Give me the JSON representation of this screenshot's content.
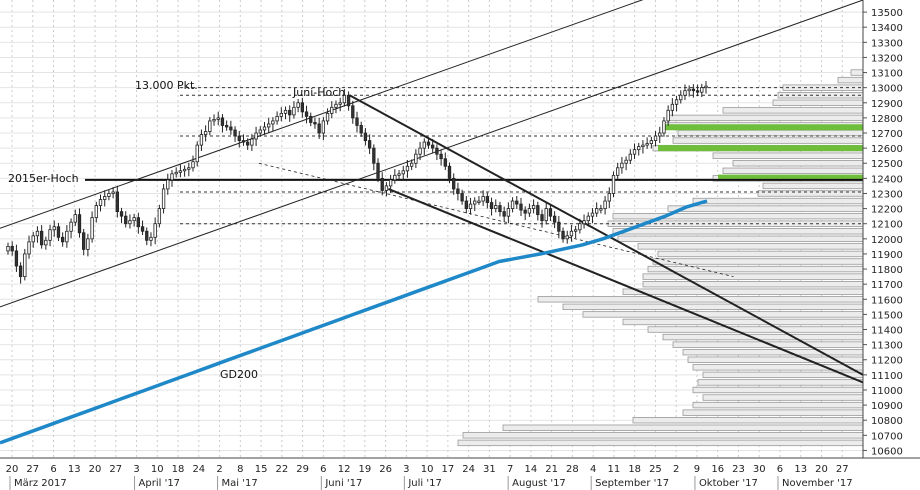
{
  "chart_data": {
    "type": "candlestick",
    "ylim": [
      10550,
      13580
    ],
    "y_ticks": [
      10600,
      10700,
      10800,
      10900,
      11000,
      11100,
      11200,
      11300,
      11400,
      11500,
      11600,
      11700,
      11800,
      11900,
      12000,
      12100,
      12200,
      12300,
      12400,
      12500,
      12600,
      12700,
      12800,
      12900,
      13000,
      13100,
      13200,
      13300,
      13400,
      13500
    ],
    "day_labels": [
      "20",
      "27",
      "6",
      "13",
      "20",
      "27",
      "3",
      "10",
      "18",
      "24",
      "2",
      "8",
      "15",
      "22",
      "29",
      "6",
      "12",
      "19",
      "26",
      "3",
      "10",
      "17",
      "24",
      "31",
      "7",
      "14",
      "21",
      "28",
      "4",
      "11",
      "18",
      "25",
      "2",
      "9",
      "16",
      "23",
      "30",
      "6",
      "13",
      "20",
      "27"
    ],
    "month_labels": [
      "März 2017",
      "April '17",
      "Mai '17",
      "Juni '17",
      "Juli '17",
      "August '17",
      "September '17",
      "Oktober '17",
      "November '17"
    ],
    "annotations": {
      "target": "13.000 Pkt.",
      "june_high": "Juni-Hoch",
      "high_2015": "2015er-Hoch",
      "ma": "GD200"
    },
    "levels": [
      {
        "price": 12390,
        "label": "2015er-Hoch",
        "style": "solid"
      },
      {
        "price": 13000,
        "label": "13.000 Pkt.",
        "style": "dashed"
      },
      {
        "price": 12950,
        "style": "dashed"
      },
      {
        "price": 12680,
        "style": "dashed"
      },
      {
        "price": 12310,
        "style": "dashed"
      },
      {
        "price": 12100,
        "style": "dashed"
      }
    ],
    "closes": [
      11950,
      11920,
      11820,
      11750,
      11900,
      11980,
      12020,
      12050,
      11960,
      11990,
      12060,
      12080,
      12010,
      11980,
      12050,
      12110,
      12160,
      12040,
      11930,
      12000,
      12140,
      12220,
      12260,
      12280,
      12300,
      12310,
      12180,
      12150,
      12100,
      12120,
      12140,
      12080,
      12050,
      11990,
      12010,
      12100,
      12200,
      12330,
      12390,
      12430,
      12440,
      12450,
      12460,
      12470,
      12510,
      12620,
      12690,
      12710,
      12780,
      12790,
      12800,
      12750,
      12740,
      12720,
      12680,
      12650,
      12640,
      12620,
      12660,
      12700,
      12720,
      12740,
      12760,
      12780,
      12810,
      12830,
      12850,
      12820,
      12870,
      12900,
      12840,
      12810,
      12770,
      12760,
      12700,
      12780,
      12830,
      12870,
      12890,
      12900,
      12950,
      12880,
      12800,
      12750,
      12700,
      12650,
      12600,
      12500,
      12400,
      12320,
      12350,
      12390,
      12420,
      12430,
      12450,
      12480,
      12500,
      12560,
      12600,
      12640,
      12620,
      12600,
      12560,
      12530,
      12480,
      12400,
      12330,
      12300,
      12250,
      12200,
      12230,
      12250,
      12250,
      12280,
      12240,
      12200,
      12220,
      12180,
      12150,
      12200,
      12250,
      12230,
      12190,
      12170,
      12200,
      12220,
      12160,
      12120,
      12200,
      12150,
      12110,
      12050,
      12000,
      12020,
      12050,
      12060,
      12100,
      12120,
      12150,
      12170,
      12200,
      12200,
      12250,
      12300,
      12420,
      12470,
      12500,
      12520,
      12560,
      12590,
      12610,
      12620,
      12630,
      12650,
      12680,
      12700,
      12780,
      12850,
      12890,
      12920,
      12950,
      12980,
      12990,
      12980,
      12970,
      13000,
      13010
    ],
    "gd200": [
      10650,
      10700,
      10750,
      10800,
      10850,
      10900,
      10950,
      11000,
      11050,
      11100,
      11150,
      11200,
      11250,
      11300,
      11350,
      11400,
      11450,
      11500,
      11550,
      11600,
      11650,
      11700,
      11750,
      11800,
      11850,
      11875,
      11900,
      11930,
      11960,
      12000,
      12050,
      12100,
      12150,
      12210,
      12250
    ],
    "volume_profile_max": 420,
    "volume_profile": [
      {
        "p": 10650,
        "v": 405
      },
      {
        "p": 10700,
        "v": 400
      },
      {
        "p": 10750,
        "v": 360
      },
      {
        "p": 10800,
        "v": 230
      },
      {
        "p": 10850,
        "v": 180
      },
      {
        "p": 10900,
        "v": 170
      },
      {
        "p": 10950,
        "v": 160
      },
      {
        "p": 11000,
        "v": 170
      },
      {
        "p": 11050,
        "v": 165
      },
      {
        "p": 11100,
        "v": 160
      },
      {
        "p": 11150,
        "v": 170
      },
      {
        "p": 11200,
        "v": 175
      },
      {
        "p": 11250,
        "v": 180
      },
      {
        "p": 11300,
        "v": 190
      },
      {
        "p": 11350,
        "v": 200
      },
      {
        "p": 11400,
        "v": 215
      },
      {
        "p": 11450,
        "v": 240
      },
      {
        "p": 11500,
        "v": 280
      },
      {
        "p": 11550,
        "v": 300
      },
      {
        "p": 11600,
        "v": 325
      },
      {
        "p": 11650,
        "v": 240
      },
      {
        "p": 11700,
        "v": 220
      },
      {
        "p": 11750,
        "v": 220
      },
      {
        "p": 11800,
        "v": 215
      },
      {
        "p": 11850,
        "v": 210
      },
      {
        "p": 11900,
        "v": 205
      },
      {
        "p": 11950,
        "v": 225
      },
      {
        "p": 12000,
        "v": 245
      },
      {
        "p": 12050,
        "v": 250
      },
      {
        "p": 12100,
        "v": 255
      },
      {
        "p": 12150,
        "v": 250
      },
      {
        "p": 12200,
        "v": 195
      },
      {
        "p": 12250,
        "v": 170
      },
      {
        "p": 12300,
        "v": 105
      },
      {
        "p": 12350,
        "v": 100
      },
      {
        "p": 12400,
        "v": 150
      },
      {
        "p": 12450,
        "v": 140
      },
      {
        "p": 12500,
        "v": 130
      },
      {
        "p": 12550,
        "v": 150
      },
      {
        "p": 12600,
        "v": 210
      },
      {
        "p": 12650,
        "v": 190
      },
      {
        "p": 12700,
        "v": 185
      },
      {
        "p": 12750,
        "v": 200
      },
      {
        "p": 12800,
        "v": 195
      },
      {
        "p": 12850,
        "v": 140
      },
      {
        "p": 12900,
        "v": 90
      },
      {
        "p": 12950,
        "v": 85
      },
      {
        "p": 13000,
        "v": 80
      },
      {
        "p": 13050,
        "v": 25
      },
      {
        "p": 13100,
        "v": 12
      }
    ],
    "green_zones": [
      {
        "p": 12405,
        "v": 145
      },
      {
        "p": 12600,
        "v": 205
      },
      {
        "p": 12738,
        "v": 200
      }
    ],
    "trend_lines": [
      {
        "x1": 0,
        "p1": 12070,
        "x2": 1,
        "p2": 14100,
        "style": "thin"
      },
      {
        "x1": 0,
        "p1": 11550,
        "x2": 1,
        "p2": 13580,
        "style": "thin"
      },
      {
        "x1": 0.405,
        "p1": 12950,
        "x2": 1,
        "p2": 11100,
        "style": "thick"
      },
      {
        "x1": 0.45,
        "p1": 12330,
        "x2": 1,
        "p2": 11050,
        "style": "thick"
      },
      {
        "x1": 0.3,
        "p1": 12500,
        "x2": 0.85,
        "p2": 11750,
        "style": "dashed-thin"
      }
    ]
  },
  "colors": {
    "candle_up": "#ffffff",
    "candle_down": "#333333",
    "gd200": "#1e88c8",
    "green_zone": "#6ebe3c",
    "profile_bar": "#ececec",
    "grid": "#cccccc"
  }
}
